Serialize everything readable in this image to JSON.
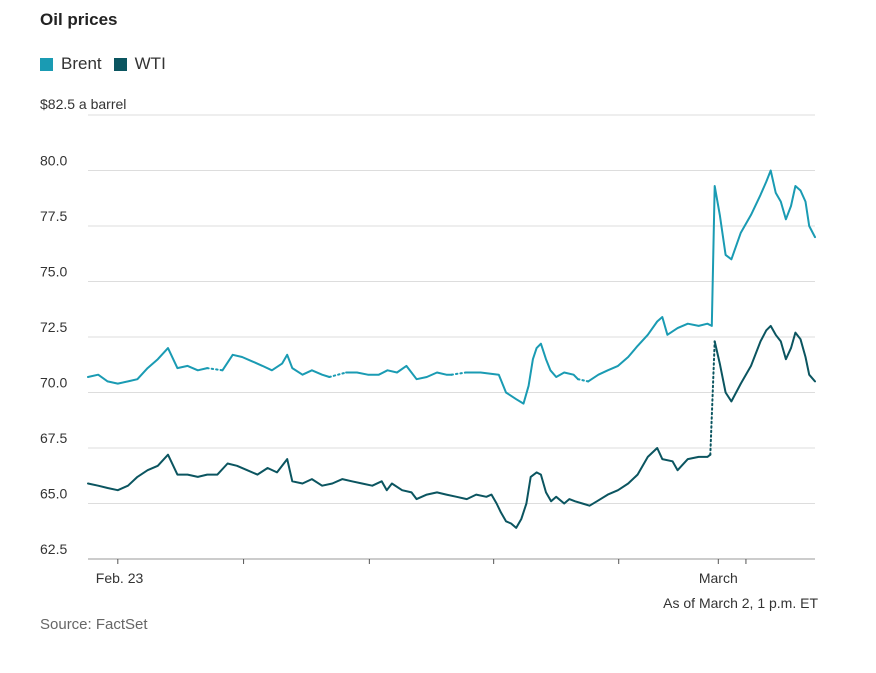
{
  "title": "Oil prices",
  "unit_label": "$82.5 a barrel",
  "as_of": "As of March 2, 1 p.m. ET",
  "source": "Source: FactSet",
  "colors": {
    "brent": "#1a9bb3",
    "wti": "#0b5560",
    "grid": "#dddddd"
  },
  "legend": [
    {
      "name": "Brent",
      "color": "#1a9bb3"
    },
    {
      "name": "WTI",
      "color": "#0b5560"
    }
  ],
  "chart_data": {
    "type": "line",
    "title": "Oil prices",
    "ylabel": "$ a barrel",
    "ylim": [
      62.5,
      82.5
    ],
    "xlim": [
      0,
      100
    ],
    "yticks": [
      {
        "value": 62.5,
        "label": "62.5"
      },
      {
        "value": 65.0,
        "label": "65.0"
      },
      {
        "value": 67.5,
        "label": "67.5"
      },
      {
        "value": 70.0,
        "label": "70.0"
      },
      {
        "value": 72.5,
        "label": "72.5"
      },
      {
        "value": 75.0,
        "label": "75.0"
      },
      {
        "value": 77.5,
        "label": "77.5"
      },
      {
        "value": 80.0,
        "label": "80.0"
      }
    ],
    "xticks": [
      {
        "x": 4.1,
        "label": "Feb. 23"
      },
      {
        "x": 21.4,
        "label": ""
      },
      {
        "x": 38.7,
        "label": ""
      },
      {
        "x": 55.8,
        "label": ""
      },
      {
        "x": 73.0,
        "label": ""
      },
      {
        "x": 86.7,
        "label": "March"
      },
      {
        "x": 90.5,
        "label": ""
      }
    ],
    "series": [
      {
        "name": "Brent",
        "color": "#1a9bb3",
        "segments": [
          {
            "style": "solid",
            "points": [
              [
                0,
                70.7
              ],
              [
                1.4,
                70.8
              ],
              [
                2.7,
                70.5
              ],
              [
                4.1,
                70.4
              ],
              [
                5.5,
                70.5
              ],
              [
                6.8,
                70.6
              ],
              [
                8.2,
                71.1
              ],
              [
                9.6,
                71.5
              ],
              [
                11.0,
                72.0
              ],
              [
                12.3,
                71.1
              ],
              [
                13.7,
                71.2
              ],
              [
                15.1,
                71.0
              ],
              [
                16.4,
                71.1
              ]
            ]
          },
          {
            "style": "dotted",
            "points": [
              [
                16.4,
                71.1
              ],
              [
                18.5,
                71.0
              ]
            ]
          },
          {
            "style": "solid",
            "points": [
              [
                18.5,
                71.0
              ],
              [
                19.9,
                71.7
              ],
              [
                21.2,
                71.6
              ],
              [
                22.6,
                71.4
              ],
              [
                24.0,
                71.2
              ],
              [
                25.3,
                71.0
              ],
              [
                26.7,
                71.3
              ],
              [
                27.4,
                71.7
              ],
              [
                28.1,
                71.1
              ],
              [
                29.5,
                70.8
              ],
              [
                30.8,
                71.0
              ],
              [
                32.2,
                70.8
              ],
              [
                33.2,
                70.7
              ]
            ]
          },
          {
            "style": "dotted",
            "points": [
              [
                33.2,
                70.7
              ],
              [
                35.5,
                70.9
              ]
            ]
          },
          {
            "style": "solid",
            "points": [
              [
                35.5,
                70.9
              ],
              [
                37.0,
                70.9
              ],
              [
                38.5,
                70.8
              ],
              [
                40.0,
                70.8
              ],
              [
                41.2,
                71.0
              ],
              [
                42.5,
                70.9
              ],
              [
                43.8,
                71.2
              ],
              [
                45.2,
                70.6
              ],
              [
                46.6,
                70.7
              ],
              [
                48.0,
                70.9
              ],
              [
                49.3,
                70.8
              ],
              [
                50.0,
                70.8
              ]
            ]
          },
          {
            "style": "dotted",
            "points": [
              [
                50.0,
                70.8
              ],
              [
                52.0,
                70.9
              ]
            ]
          },
          {
            "style": "solid",
            "points": [
              [
                52.0,
                70.9
              ],
              [
                54.0,
                70.9
              ],
              [
                56.5,
                70.8
              ],
              [
                57.5,
                70.0
              ],
              [
                58.9,
                69.7
              ],
              [
                59.9,
                69.5
              ],
              [
                60.6,
                70.3
              ],
              [
                61.2,
                71.5
              ],
              [
                61.7,
                72.0
              ],
              [
                62.3,
                72.2
              ],
              [
                63.0,
                71.5
              ],
              [
                63.6,
                71.0
              ],
              [
                64.4,
                70.7
              ],
              [
                65.5,
                70.9
              ],
              [
                66.8,
                70.8
              ],
              [
                67.4,
                70.6
              ]
            ]
          },
          {
            "style": "dotted",
            "points": [
              [
                67.4,
                70.6
              ],
              [
                68.8,
                70.5
              ]
            ]
          },
          {
            "style": "solid",
            "points": [
              [
                68.8,
                70.5
              ],
              [
                70.2,
                70.8
              ],
              [
                71.5,
                71.0
              ],
              [
                72.9,
                71.2
              ],
              [
                74.3,
                71.6
              ],
              [
                75.6,
                72.1
              ],
              [
                77.0,
                72.6
              ],
              [
                78.3,
                73.2
              ],
              [
                79.0,
                73.4
              ],
              [
                79.7,
                72.6
              ],
              [
                81.1,
                72.9
              ],
              [
                82.5,
                73.1
              ],
              [
                84.0,
                73.0
              ],
              [
                85.2,
                73.1
              ],
              [
                85.8,
                73.0
              ],
              [
                86.2,
                79.3
              ],
              [
                86.9,
                78.0
              ],
              [
                87.7,
                76.2
              ],
              [
                88.5,
                76.0
              ],
              [
                89.8,
                77.2
              ],
              [
                91.2,
                78.0
              ],
              [
                92.5,
                78.9
              ],
              [
                93.3,
                79.5
              ],
              [
                93.9,
                80.0
              ],
              [
                94.6,
                79.0
              ],
              [
                95.3,
                78.6
              ],
              [
                96.0,
                77.8
              ],
              [
                96.7,
                78.4
              ],
              [
                97.3,
                79.3
              ],
              [
                98.0,
                79.1
              ],
              [
                98.7,
                78.6
              ],
              [
                99.2,
                77.5
              ],
              [
                100,
                77.0
              ]
            ]
          }
        ]
      },
      {
        "name": "WTI",
        "color": "#0b5560",
        "segments": [
          {
            "style": "solid",
            "points": [
              [
                0,
                65.9
              ],
              [
                1.4,
                65.8
              ],
              [
                2.7,
                65.7
              ],
              [
                4.1,
                65.6
              ],
              [
                5.5,
                65.8
              ],
              [
                6.8,
                66.2
              ],
              [
                8.2,
                66.5
              ],
              [
                9.6,
                66.7
              ],
              [
                11.0,
                67.2
              ],
              [
                12.3,
                66.3
              ],
              [
                13.7,
                66.3
              ],
              [
                15.1,
                66.2
              ],
              [
                16.4,
                66.3
              ],
              [
                17.8,
                66.3
              ],
              [
                19.2,
                66.8
              ],
              [
                20.5,
                66.7
              ],
              [
                21.9,
                66.5
              ],
              [
                23.3,
                66.3
              ],
              [
                24.7,
                66.6
              ],
              [
                26.0,
                66.4
              ],
              [
                27.4,
                67.0
              ],
              [
                28.1,
                66.0
              ],
              [
                29.5,
                65.9
              ],
              [
                30.8,
                66.1
              ],
              [
                32.2,
                65.8
              ],
              [
                33.6,
                65.9
              ],
              [
                35.0,
                66.1
              ],
              [
                36.3,
                66.0
              ],
              [
                37.7,
                65.9
              ],
              [
                39.1,
                65.8
              ],
              [
                40.4,
                66.0
              ],
              [
                41.1,
                65.6
              ],
              [
                41.8,
                65.9
              ],
              [
                43.2,
                65.6
              ],
              [
                44.5,
                65.5
              ],
              [
                45.2,
                65.2
              ],
              [
                46.6,
                65.4
              ],
              [
                48.0,
                65.5
              ],
              [
                49.3,
                65.4
              ],
              [
                50.7,
                65.3
              ],
              [
                52.1,
                65.2
              ],
              [
                53.4,
                65.4
              ],
              [
                54.8,
                65.3
              ],
              [
                55.5,
                65.4
              ],
              [
                56.2,
                65.0
              ],
              [
                56.8,
                64.6
              ],
              [
                57.5,
                64.2
              ],
              [
                58.2,
                64.1
              ],
              [
                58.9,
                63.9
              ],
              [
                59.6,
                64.3
              ],
              [
                60.3,
                65.0
              ],
              [
                60.9,
                66.2
              ],
              [
                61.7,
                66.4
              ],
              [
                62.3,
                66.3
              ],
              [
                63.0,
                65.5
              ],
              [
                63.7,
                65.1
              ],
              [
                64.4,
                65.3
              ],
              [
                65.5,
                65.0
              ],
              [
                66.2,
                65.2
              ],
              [
                67.0,
                65.1
              ],
              [
                68.0,
                65.0
              ],
              [
                69.0,
                64.9
              ],
              [
                70.0,
                65.1
              ],
              [
                71.5,
                65.4
              ],
              [
                72.9,
                65.6
              ],
              [
                74.3,
                65.9
              ],
              [
                75.6,
                66.3
              ],
              [
                77.0,
                67.1
              ],
              [
                78.3,
                67.5
              ],
              [
                79.0,
                67.0
              ],
              [
                80.4,
                66.9
              ],
              [
                81.1,
                66.5
              ],
              [
                82.5,
                67.0
              ],
              [
                84.0,
                67.1
              ],
              [
                85.2,
                67.1
              ],
              [
                85.6,
                67.2
              ]
            ]
          },
          {
            "style": "dotted",
            "points": [
              [
                85.6,
                67.2
              ],
              [
                86.2,
                72.3
              ]
            ]
          },
          {
            "style": "solid",
            "points": [
              [
                86.2,
                72.3
              ],
              [
                86.9,
                71.3
              ],
              [
                87.7,
                70.0
              ],
              [
                88.5,
                69.6
              ],
              [
                89.8,
                70.4
              ],
              [
                91.2,
                71.2
              ],
              [
                92.5,
                72.3
              ],
              [
                93.3,
                72.8
              ],
              [
                93.9,
                73.0
              ],
              [
                94.6,
                72.6
              ],
              [
                95.3,
                72.3
              ],
              [
                96.0,
                71.5
              ],
              [
                96.7,
                72.0
              ],
              [
                97.3,
                72.7
              ],
              [
                98.0,
                72.4
              ],
              [
                98.7,
                71.6
              ],
              [
                99.2,
                70.8
              ],
              [
                100,
                70.5
              ]
            ]
          }
        ]
      }
    ]
  }
}
